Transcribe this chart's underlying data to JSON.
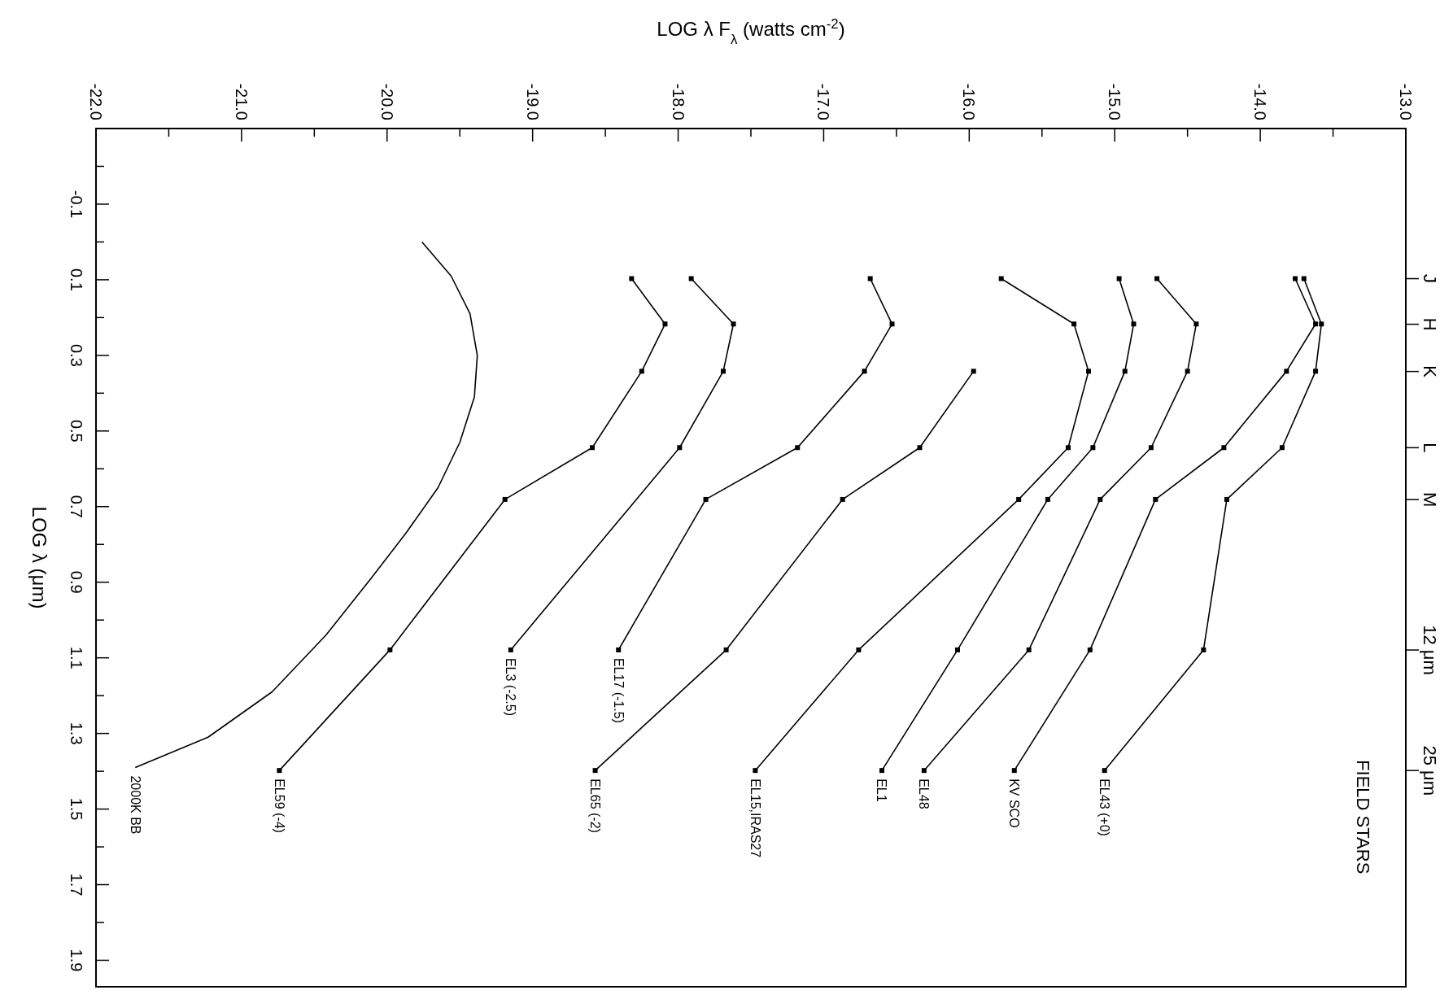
{
  "chart_data": {
    "type": "line",
    "xlabel": "LOG λ F$_{λ}$ (watts cm$^{-2}$)",
    "ylabel": "LOG λ (μm)",
    "series": [
      {
        "name": "EL43 (+0)",
        "color": "#000000",
        "x": [
          -13.7,
          -13.58,
          -13.62,
          -13.85,
          -14.23,
          -14.39,
          -15.07
        ],
        "values": [
          0.097,
          0.217,
          0.342,
          0.544,
          0.681,
          1.079,
          1.398
        ]
      },
      {
        "name": "KV SCO",
        "color": "#000000",
        "x": [
          -13.76,
          -13.62,
          -13.82,
          -14.25,
          -14.72,
          -15.17,
          -15.69
        ],
        "values": [
          0.097,
          0.217,
          0.342,
          0.544,
          0.681,
          1.079,
          1.398
        ]
      },
      {
        "name": "EL48",
        "color": "#000000",
        "x": [
          -14.71,
          -14.44,
          -14.5,
          -14.75,
          -15.1,
          -15.59,
          -16.31
        ],
        "values": [
          0.097,
          0.217,
          0.342,
          0.544,
          0.681,
          1.079,
          1.398
        ]
      },
      {
        "name": "EL1",
        "color": "#000000",
        "x": [
          -14.97,
          -14.87,
          -14.93,
          -15.15,
          -15.46,
          -16.08,
          -16.6
        ],
        "values": [
          0.097,
          0.217,
          0.342,
          0.544,
          0.681,
          1.079,
          1.398
        ]
      },
      {
        "name": "EL15,IRAS27",
        "color": "#000000",
        "x": [
          -15.78,
          -15.28,
          -15.18,
          -15.32,
          -15.66,
          -16.76,
          -17.47
        ],
        "values": [
          0.097,
          0.217,
          0.342,
          0.544,
          0.681,
          1.079,
          1.398
        ]
      },
      {
        "name": "EL65 (-2)",
        "color": "#000000",
        "x": [
          -15.97,
          -16.34,
          -16.87,
          -17.67,
          -18.57
        ],
        "values": [
          0.342,
          0.544,
          0.681,
          1.079,
          1.398
        ]
      },
      {
        "name": "EL17 (-1.5)",
        "color": "#000000",
        "x": [
          -16.68,
          -16.53,
          -16.72,
          -17.18,
          -17.81,
          -18.41
        ],
        "values": [
          0.097,
          0.217,
          0.342,
          0.544,
          0.681,
          1.079
        ]
      },
      {
        "name": "EL3 (-2.5)",
        "color": "#000000",
        "x": [
          -17.91,
          -17.62,
          -17.69,
          -17.99,
          -19.15
        ],
        "values": [
          0.097,
          0.217,
          0.342,
          0.544,
          1.079
        ]
      },
      {
        "name": "EL59 (-4)",
        "color": "#000000",
        "x": [
          -18.32,
          -18.09,
          -18.25,
          -18.59,
          -19.19,
          -19.98,
          -20.74
        ],
        "values": [
          0.097,
          0.217,
          0.342,
          0.544,
          0.681,
          1.079,
          1.398
        ]
      },
      {
        "name": "2000K BB",
        "color": "#000000",
        "marker": "none",
        "x": [
          -19.76,
          -19.56,
          -19.43,
          -19.38,
          -19.4,
          -19.5,
          -19.65,
          -19.87,
          -20.11,
          -20.42,
          -20.79,
          -21.23,
          -21.73
        ],
        "values": [
          0.0,
          0.09,
          0.19,
          0.3,
          0.41,
          0.53,
          0.65,
          0.77,
          0.89,
          1.04,
          1.19,
          1.31,
          1.39
        ]
      }
    ],
    "xlim": [
      -22,
      -13
    ],
    "xticks": [
      {
        "value": -22,
        "label": "-22.0"
      },
      {
        "value": -21.5,
        "label": null
      },
      {
        "value": -21,
        "label": "-21.0"
      },
      {
        "value": -20.5,
        "label": null
      },
      {
        "value": -20,
        "label": "-20.0"
      },
      {
        "value": -19.5,
        "label": null
      },
      {
        "value": -19,
        "label": "-19.0"
      },
      {
        "value": -18.5,
        "label": null
      },
      {
        "value": -18,
        "label": "-18.0"
      },
      {
        "value": -17.5,
        "label": null
      },
      {
        "value": -17,
        "label": "-17.0"
      },
      {
        "value": -16.5,
        "label": null
      },
      {
        "value": -16,
        "label": "-16.0"
      },
      {
        "value": -15.5,
        "label": null
      },
      {
        "value": -15,
        "label": "-15.0"
      },
      {
        "value": -14.5,
        "label": null
      },
      {
        "value": -14,
        "label": "-14.0"
      },
      {
        "value": -13.5,
        "label": null
      },
      {
        "value": -13,
        "label": "-13.0"
      }
    ],
    "ylim": [
      1.97,
      -0.3
    ],
    "yticks": [
      {
        "value": -0.2,
        "label": null
      },
      {
        "value": -0.1,
        "label": "-0.1"
      },
      {
        "value": 0,
        "label": null
      },
      {
        "value": 0.1,
        "label": "0.1"
      },
      {
        "value": 0.2,
        "label": null
      },
      {
        "value": 0.3,
        "label": "0.3"
      },
      {
        "value": 0.4,
        "label": null
      },
      {
        "value": 0.5,
        "label": "0.5"
      },
      {
        "value": 0.6,
        "label": null
      },
      {
        "value": 0.7,
        "label": "0.7"
      },
      {
        "value": 0.8,
        "label": null
      },
      {
        "value": 0.9,
        "label": "0.9"
      },
      {
        "value": 1.0,
        "label": null
      },
      {
        "value": 1.1,
        "label": "1.1"
      },
      {
        "value": 1.2,
        "label": null
      },
      {
        "value": 1.3,
        "label": "1.3"
      },
      {
        "value": 1.4,
        "label": null
      },
      {
        "value": 1.5,
        "label": "1.5"
      },
      {
        "value": 1.6,
        "label": null
      },
      {
        "value": 1.7,
        "label": "1.7"
      },
      {
        "value": 1.8,
        "label": null
      },
      {
        "value": 1.9,
        "label": "1.9"
      }
    ],
    "y2lim": [
      93.3,
      0.501
    ],
    "y2ticks": [
      {
        "value": 1.25,
        "label": "J"
      },
      {
        "value": 1.65,
        "label": "H"
      },
      {
        "value": 2.2,
        "label": "K"
      },
      {
        "value": 3.5,
        "label": "L"
      },
      {
        "value": 4.8,
        "label": "M"
      },
      {
        "value": 12,
        "label": "12 μm"
      },
      {
        "value": 25,
        "label": "25 μm"
      }
    ],
    "log": "y2",
    "marker": "square",
    "line_style": "solid",
    "grid": false,
    "annotations": [
      "FIELD STARS"
    ]
  }
}
